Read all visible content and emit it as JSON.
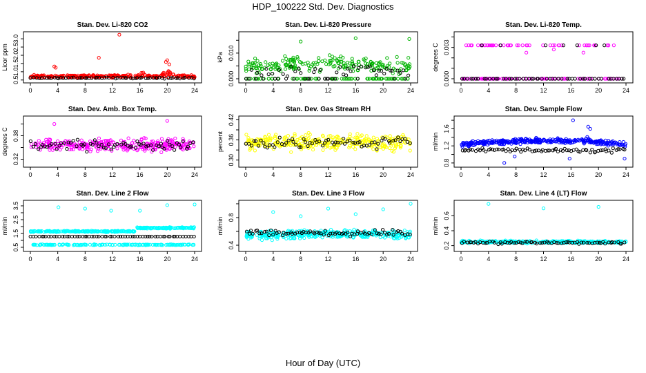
{
  "title": "HDP_100222  Std. Dev. Diagnostics",
  "xcaption": "Hour of Day (UTC)",
  "chart_data": [
    {
      "type": "scatter",
      "title": "Stan. Dev. Li-820 CO2",
      "ylabel": "Licor ppm",
      "xlim": [
        0,
        24
      ],
      "xticks": [
        0,
        4,
        8,
        12,
        16,
        20,
        24
      ],
      "ylim": [
        0.45,
        3.3
      ],
      "yticks": [
        0.5,
        1.0,
        1.5,
        2.0,
        2.5,
        3.0
      ],
      "ytick_labels": [
        "0.5",
        "1.0",
        "1.5",
        "2.0",
        "2.5",
        "3.0"
      ],
      "color": "#ff0000",
      "outliers": [
        [
          3.5,
          1.32
        ],
        [
          3.7,
          1.25
        ],
        [
          10.0,
          1.85
        ],
        [
          13.0,
          3.25
        ],
        [
          16.5,
          0.95
        ],
        [
          19.8,
          1.6
        ],
        [
          20.0,
          1.7
        ],
        [
          20.3,
          1.45
        ]
      ],
      "gen": {
        "seed": 11,
        "n": 300,
        "base": 0.72,
        "amp": 0.12,
        "trend": 0.0,
        "floor": 0.55,
        "bumps": [
          [
            20.3,
            0.35,
            1.0
          ],
          [
            16.4,
            0.18,
            0.5
          ]
        ],
        "blackN": 65,
        "blackBase": 0.62,
        "blackAmp": 0.05
      }
    },
    {
      "type": "scatter",
      "title": "Stan. Dev. Li-820 Pressure",
      "ylabel": "kPa",
      "xlim": [
        0,
        24
      ],
      "xticks": [
        0,
        4,
        8,
        12,
        16,
        20,
        24
      ],
      "ylim": [
        -0.0008,
        0.0175
      ],
      "yticks": [
        0.0,
        0.005,
        0.01,
        0.015
      ],
      "ytick_labels": [
        "0.000",
        "",
        "0.010",
        ""
      ],
      "color": "#00b400",
      "outliers": [
        [
          8.0,
          0.0145
        ],
        [
          16.0,
          0.0158
        ],
        [
          23.8,
          0.0155
        ],
        [
          12.2,
          0.0092
        ],
        [
          22.0,
          0.0085
        ]
      ],
      "gen": {
        "seed": 22,
        "n": 280,
        "base": 0.0042,
        "amp": 0.0042,
        "trend": 0.0018,
        "floor": 0.0,
        "bumps": [],
        "zeroFrac": 0.22,
        "blackN": 60,
        "blackBase": 0.003,
        "blackAmp": 0.003
      }
    },
    {
      "type": "scatter",
      "title": "Stan. Dev. Li-820 Temp.",
      "ylabel": "degrees C",
      "xlim": [
        0,
        24
      ],
      "xticks": [
        0,
        4,
        8,
        12,
        16,
        20,
        24
      ],
      "ylim": [
        -0.0002,
        0.0043
      ],
      "yticks": [
        0.0,
        0.001,
        0.002,
        0.003,
        0.004
      ],
      "ytick_labels": [
        "0.000",
        "",
        "",
        "0.003",
        ""
      ],
      "color": "#ff00ff",
      "outliers": [
        [
          9.5,
          0.0025
        ],
        [
          13.5,
          0.0028
        ],
        [
          17.8,
          0.0025
        ]
      ],
      "gen": {
        "seed": 33,
        "n": 150,
        "base": 0.0,
        "amp": 0.0,
        "trend": 0.0,
        "floor": 0.0,
        "bumps": [],
        "levels": [
          [
            0.0,
            0.68
          ],
          [
            0.0032,
            0.32
          ]
        ],
        "blackN": 60,
        "blackBase": 0.0,
        "blackAmp": 0.0,
        "blackLevels": [
          [
            0.0,
            0.85
          ],
          [
            0.0032,
            0.15
          ]
        ]
      }
    },
    {
      "type": "scatter",
      "title": "Stan. Dev. Amb. Box Temp.",
      "ylabel": "degrees C",
      "xlim": [
        0,
        24
      ],
      "xticks": [
        0,
        4,
        8,
        12,
        16,
        20,
        24
      ],
      "ylim": [
        0.305,
        0.425
      ],
      "yticks": [
        0.32,
        0.35,
        0.38,
        0.41
      ],
      "ytick_labels": [
        "0.32",
        "",
        "0.38",
        ""
      ],
      "color": "#ff00ff",
      "outliers": [
        [
          20.0,
          0.418
        ],
        [
          3.5,
          0.41
        ]
      ],
      "gen": {
        "seed": 44,
        "n": 300,
        "base": 0.356,
        "amp": 0.022,
        "trend": 0.0,
        "floor": 0.31,
        "bumps": [],
        "blackN": 70,
        "blackBase": 0.356,
        "blackAmp": 0.02
      }
    },
    {
      "type": "scatter",
      "title": "Stan. Dev. Gas Stream RH",
      "ylabel": "percent",
      "xlim": [
        0,
        24
      ],
      "xticks": [
        0,
        4,
        8,
        12,
        16,
        20,
        24
      ],
      "ylim": [
        0.285,
        0.425
      ],
      "yticks": [
        0.3,
        0.33,
        0.36,
        0.39,
        0.42
      ],
      "ytick_labels": [
        "0.30",
        "",
        "0.36",
        "",
        "0.42"
      ],
      "color": "#ffff00",
      "outliers": [],
      "gen": {
        "seed": 55,
        "n": 320,
        "base": 0.352,
        "amp": 0.034,
        "trend": 0.0,
        "floor": 0.29,
        "bumps": [],
        "blackN": 70,
        "blackBase": 0.352,
        "blackAmp": 0.025
      }
    },
    {
      "type": "scatter",
      "title": "Stan. Dev. Sample Flow",
      "ylabel": "ml/min",
      "xlim": [
        0,
        24
      ],
      "xticks": [
        0,
        4,
        8,
        12,
        16,
        20,
        24
      ],
      "ylim": [
        0.75,
        1.85
      ],
      "yticks": [
        0.8,
        1.0,
        1.2,
        1.4,
        1.6,
        1.8
      ],
      "ytick_labels": [
        "0.8",
        "",
        "1.2",
        "",
        "1.6",
        ""
      ],
      "color": "#0000ff",
      "outliers": [
        [
          16.3,
          1.8
        ],
        [
          18.5,
          1.65
        ],
        [
          18.8,
          1.6
        ],
        [
          6.3,
          0.8
        ],
        [
          23.8,
          0.9
        ],
        [
          15.8,
          0.9
        ],
        [
          7.8,
          0.95
        ]
      ],
      "gen": {
        "seed": 66,
        "n": 360,
        "base": 1.24,
        "amp": 0.08,
        "trend": 0.08,
        "floor": 0.9,
        "bumps": [
          [
            18.0,
            0.12,
            1.0
          ]
        ],
        "blackN": 75,
        "blackBase": 1.1,
        "blackAmp": 0.07
      }
    },
    {
      "type": "scatter",
      "title": "Stan. Dev. Line 2 Flow",
      "ylabel": "ml/min",
      "xlim": [
        0,
        24
      ],
      "xticks": [
        0,
        4,
        8,
        12,
        16,
        20,
        24
      ],
      "ylim": [
        0.35,
        3.75
      ],
      "yticks": [
        0.5,
        1.0,
        1.5,
        2.0,
        2.5,
        3.0,
        3.5
      ],
      "ytick_labels": [
        "0.5",
        "",
        "1.5",
        "",
        "2.5",
        "",
        "3.5"
      ],
      "color": "#00ffff",
      "outliers": [
        [
          4.1,
          3.4
        ],
        [
          8.0,
          3.3
        ],
        [
          11.8,
          3.15
        ],
        [
          16.0,
          3.15
        ],
        [
          20.0,
          3.55
        ],
        [
          24.0,
          3.6
        ]
      ],
      "gen": {
        "seed": 77,
        "n": 320,
        "base": 1.65,
        "amp": 0.07,
        "trend": 0.0,
        "floor": 1.3,
        "bumps": [],
        "step": [
          15.5,
          0.25
        ],
        "lowBand": [
          0.68,
          0.05,
          160
        ],
        "blackN": 65,
        "blackBase": 0.62,
        "blackAmp": 0.04
      }
    },
    {
      "type": "scatter",
      "title": "Stan. Dev. Line 3 Flow",
      "ylabel": "ml/min",
      "xlim": [
        0,
        24
      ],
      "xticks": [
        0,
        4,
        8,
        12,
        16,
        20,
        24
      ],
      "ylim": [
        0.34,
        1.02
      ],
      "yticks": [
        0.4,
        0.6,
        0.8,
        1.0
      ],
      "ytick_labels": [
        "0.4",
        "",
        "0.8",
        ""
      ],
      "color": "#00ffff",
      "outliers": [
        [
          4.0,
          0.88
        ],
        [
          8.0,
          0.82
        ],
        [
          12.0,
          0.93
        ],
        [
          16.0,
          0.85
        ],
        [
          20.0,
          0.92
        ],
        [
          24.0,
          1.0
        ]
      ],
      "gen": {
        "seed": 88,
        "n": 360,
        "base": 0.54,
        "amp": 0.085,
        "trend": 0.02,
        "floor": 0.38,
        "bumps": [],
        "blackN": 75,
        "blackBase": 0.58,
        "blackAmp": 0.06
      }
    },
    {
      "type": "scatter",
      "title": "Stan. Dev. Line 4 (LT) Flow",
      "ylabel": "ml/min",
      "xlim": [
        0,
        24
      ],
      "xticks": [
        0,
        4,
        8,
        12,
        16,
        20,
        24
      ],
      "ylim": [
        0.15,
        0.78
      ],
      "yticks": [
        0.2,
        0.4,
        0.6
      ],
      "ytick_labels": [
        "0.2",
        "0.4",
        "0.6"
      ],
      "color": "#00ffff",
      "outliers": [
        [
          4.0,
          0.76
        ],
        [
          12.0,
          0.7
        ],
        [
          20.0,
          0.72
        ]
      ],
      "gen": {
        "seed": 99,
        "n": 300,
        "base": 0.25,
        "amp": 0.025,
        "trend": 0.0,
        "floor": 0.2,
        "bumps": [],
        "blackN": 70,
        "blackBase": 0.24,
        "blackAmp": 0.025
      }
    }
  ]
}
